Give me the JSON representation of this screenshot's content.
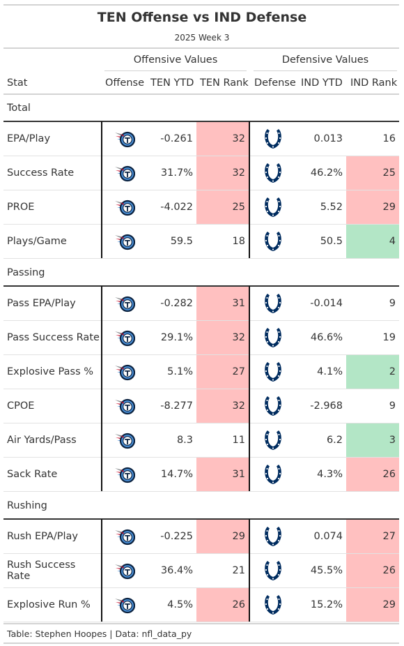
{
  "chart_data": {
    "type": "table",
    "title": "TEN Offense vs IND Defense",
    "subtitle": "2025 Week 3",
    "spanners": {
      "offense": "Offensive Values",
      "defense": "Defensive Values"
    },
    "columns": [
      "Stat",
      "Offense",
      "TEN YTD",
      "TEN Rank",
      "Defense",
      "IND YTD",
      "IND Rank"
    ],
    "offense_logo": "titans-logo-icon",
    "defense_logo": "colts-horseshoe-icon",
    "rank_colors": {
      "bad": "#ffc0c0",
      "good": "#b3e6c6",
      "neutral": "#ffffff"
    },
    "groups": [
      {
        "label": "Total",
        "rows": [
          {
            "stat": "EPA/Play",
            "ten_ytd": "-0.261",
            "ten_rank": 32,
            "ind_ytd": "0.013",
            "ind_rank": 16
          },
          {
            "stat": "Success Rate",
            "ten_ytd": "31.7%",
            "ten_rank": 32,
            "ind_ytd": "46.2%",
            "ind_rank": 25
          },
          {
            "stat": "PROE",
            "ten_ytd": "-4.022",
            "ten_rank": 25,
            "ind_ytd": "5.52",
            "ind_rank": 29
          },
          {
            "stat": "Plays/Game",
            "ten_ytd": "59.5",
            "ten_rank": 18,
            "ind_ytd": "50.5",
            "ind_rank": 4
          }
        ]
      },
      {
        "label": "Passing",
        "rows": [
          {
            "stat": "Pass EPA/Play",
            "ten_ytd": "-0.282",
            "ten_rank": 31,
            "ind_ytd": "-0.014",
            "ind_rank": 9
          },
          {
            "stat": "Pass Success Rate",
            "ten_ytd": "29.1%",
            "ten_rank": 32,
            "ind_ytd": "46.6%",
            "ind_rank": 19
          },
          {
            "stat": "Explosive Pass %",
            "ten_ytd": "5.1%",
            "ten_rank": 27,
            "ind_ytd": "4.1%",
            "ind_rank": 2
          },
          {
            "stat": "CPOE",
            "ten_ytd": "-8.277",
            "ten_rank": 32,
            "ind_ytd": "-2.968",
            "ind_rank": 9
          },
          {
            "stat": "Air Yards/Pass",
            "ten_ytd": "8.3",
            "ten_rank": 11,
            "ind_ytd": "6.2",
            "ind_rank": 3
          },
          {
            "stat": "Sack Rate",
            "ten_ytd": "14.7%",
            "ten_rank": 31,
            "ind_ytd": "4.3%",
            "ind_rank": 26
          }
        ]
      },
      {
        "label": "Rushing",
        "rows": [
          {
            "stat": "Rush EPA/Play",
            "ten_ytd": "-0.225",
            "ten_rank": 29,
            "ind_ytd": "0.074",
            "ind_rank": 27
          },
          {
            "stat": "Rush Success Rate",
            "ten_ytd": "36.4%",
            "ten_rank": 21,
            "ind_ytd": "45.5%",
            "ind_rank": 26
          },
          {
            "stat": "Explosive Run %",
            "ten_ytd": "4.5%",
            "ten_rank": 26,
            "ind_ytd": "15.2%",
            "ind_rank": 29
          }
        ]
      }
    ],
    "source_note": "Table: Stephen Hoopes | Data: nfl_data_py"
  }
}
